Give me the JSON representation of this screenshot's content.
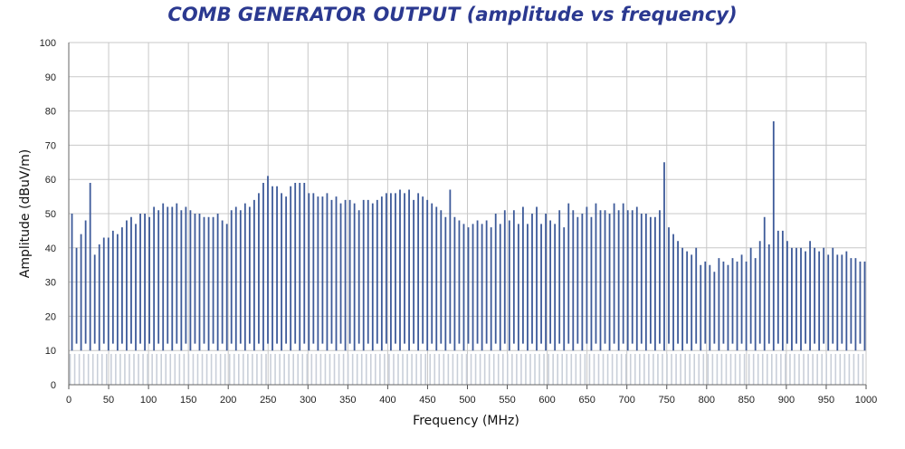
{
  "chart_data": {
    "type": "bar",
    "title": "COMB GENERATOR OUTPUT (amplitude vs frequency)",
    "xlabel": "Frequency (MHz)",
    "ylabel": "Amplitude (dBuV/m)",
    "xlim": [
      0,
      1000
    ],
    "ylim": [
      0,
      100
    ],
    "x_ticks": [
      "0",
      "50",
      "100",
      "150",
      "200",
      "250",
      "300",
      "350",
      "400",
      "450",
      "500",
      "550",
      "600",
      "650",
      "700",
      "750",
      "800",
      "850",
      "900",
      "950",
      "1000"
    ],
    "y_ticks": [
      "0",
      "10",
      "20",
      "30",
      "40",
      "50",
      "60",
      "70",
      "80",
      "90",
      "100"
    ],
    "grid": true,
    "legend": "none",
    "colors": {
      "peak": "#3d5a99",
      "floor": "#c9cfd9",
      "title": "#2b3990",
      "grid": "#c8c8c8"
    },
    "series": [
      {
        "values": [
          50,
          40,
          44,
          48,
          59,
          38,
          41,
          43,
          43,
          45,
          44,
          46,
          48,
          49,
          47,
          50,
          50,
          49,
          52,
          51,
          53,
          52,
          52,
          53,
          51,
          52,
          51,
          50,
          50,
          49,
          49,
          49,
          50,
          48,
          47,
          51,
          52,
          51,
          53,
          52,
          54,
          56,
          59,
          61,
          58,
          58,
          56,
          55,
          58,
          59,
          59,
          59,
          56,
          56,
          55,
          55,
          56,
          54,
          55,
          53,
          54,
          54,
          53,
          51,
          54,
          54,
          53,
          54,
          55,
          56,
          56,
          56,
          57,
          56,
          57,
          54,
          56,
          55,
          54,
          53,
          52,
          51,
          49,
          57,
          49,
          48,
          47,
          46,
          47,
          48,
          47,
          48,
          46,
          50,
          47,
          51,
          48,
          51,
          47,
          52,
          47,
          50,
          52,
          47,
          50,
          48,
          47,
          51,
          46,
          53,
          51,
          49,
          50,
          52,
          49,
          53,
          51,
          51,
          50,
          53,
          51,
          53,
          51,
          51,
          52,
          50,
          50,
          49,
          49,
          51,
          65,
          46,
          44,
          42,
          40,
          39,
          38,
          40,
          35,
          36,
          35,
          33,
          37,
          36,
          35,
          37,
          36,
          38,
          36,
          40,
          37,
          42,
          49,
          41,
          77,
          45,
          45,
          42,
          40,
          40,
          40,
          39,
          42,
          40,
          39,
          40,
          38,
          40,
          38,
          38,
          39,
          37,
          37,
          36,
          36
        ]
      }
    ]
  }
}
